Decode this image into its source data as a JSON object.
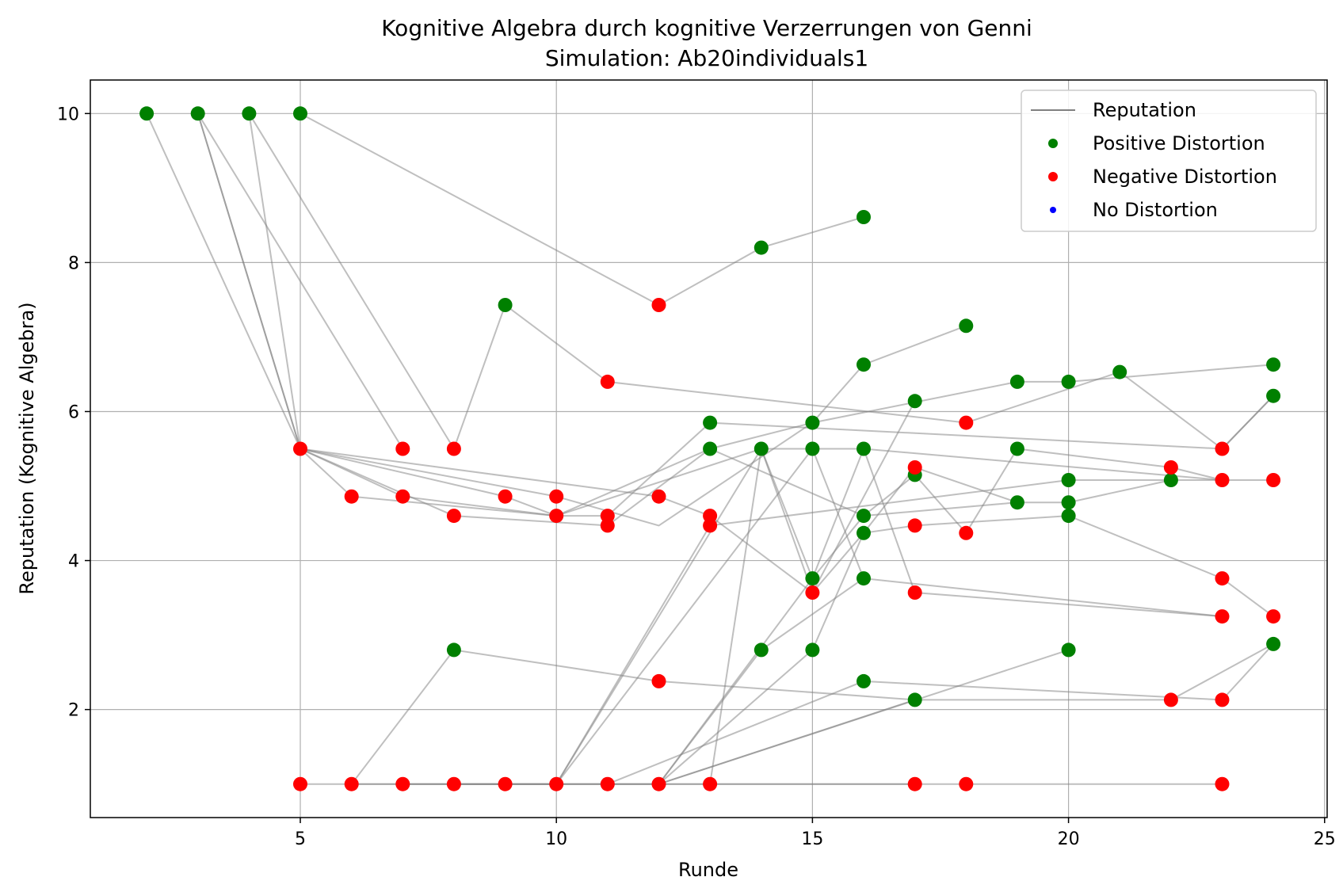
{
  "chart_data": {
    "type": "scatter",
    "title": "Kognitive Algebra durch kognitive Verzerrungen von Genni",
    "subtitle": "Simulation: Ab20individuals1",
    "xlabel": "Runde",
    "ylabel": "Reputation (Kognitive Algebra)",
    "xlim": [
      0.9,
      25.05
    ],
    "ylim": [
      0.55,
      10.45
    ],
    "xticks": [
      5,
      10,
      15,
      20,
      25
    ],
    "yticks": [
      2,
      4,
      6,
      8,
      10
    ],
    "grid": true,
    "legend_position": "top-right",
    "legend": [
      {
        "label": "Reputation",
        "kind": "line",
        "color": "#808080"
      },
      {
        "label": "Positive Distortion",
        "kind": "marker",
        "color": "#008000"
      },
      {
        "label": "Negative Distortion",
        "kind": "marker",
        "color": "#ff0000"
      },
      {
        "label": "No Distortion",
        "kind": "marker",
        "color": "#0000ff"
      }
    ],
    "series": [
      {
        "name": "Positive Distortion",
        "color": "#008000",
        "points": [
          [
            2,
            10
          ],
          [
            3,
            10
          ],
          [
            4,
            10
          ],
          [
            5,
            10
          ],
          [
            8,
            2.8
          ],
          [
            9,
            7.43
          ],
          [
            13,
            5.85
          ],
          [
            13,
            5.5
          ],
          [
            14,
            8.2
          ],
          [
            14,
            5.5
          ],
          [
            14,
            2.8
          ],
          [
            15,
            5.85
          ],
          [
            15,
            5.5
          ],
          [
            15,
            3.76
          ],
          [
            15,
            2.8
          ],
          [
            16,
            8.61
          ],
          [
            16,
            6.63
          ],
          [
            16,
            5.5
          ],
          [
            16,
            4.6
          ],
          [
            16,
            4.37
          ],
          [
            16,
            3.76
          ],
          [
            16,
            2.38
          ],
          [
            17,
            6.14
          ],
          [
            17,
            5.15
          ],
          [
            17,
            2.13
          ],
          [
            18,
            7.15
          ],
          [
            19,
            6.4
          ],
          [
            19,
            5.5
          ],
          [
            19,
            4.78
          ],
          [
            20,
            6.4
          ],
          [
            20,
            5.08
          ],
          [
            20,
            4.78
          ],
          [
            20,
            4.6
          ],
          [
            20,
            2.8
          ],
          [
            21,
            6.53
          ],
          [
            22,
            5.08
          ],
          [
            24,
            6.63
          ],
          [
            24,
            6.21
          ],
          [
            24,
            2.88
          ]
        ]
      },
      {
        "name": "Negative Distortion",
        "color": "#ff0000",
        "points": [
          [
            5,
            5.5
          ],
          [
            5,
            1
          ],
          [
            6,
            4.86
          ],
          [
            6,
            1
          ],
          [
            7,
            5.5
          ],
          [
            7,
            4.86
          ],
          [
            7,
            1
          ],
          [
            8,
            5.5
          ],
          [
            8,
            4.6
          ],
          [
            8,
            1
          ],
          [
            9,
            4.86
          ],
          [
            9,
            1
          ],
          [
            10,
            4.86
          ],
          [
            10,
            4.6
          ],
          [
            10,
            1
          ],
          [
            11,
            6.4
          ],
          [
            11,
            4.6
          ],
          [
            11,
            4.47
          ],
          [
            11,
            1
          ],
          [
            12,
            7.43
          ],
          [
            12,
            4.86
          ],
          [
            12,
            2.38
          ],
          [
            12,
            1
          ],
          [
            13,
            4.6
          ],
          [
            13,
            4.47
          ],
          [
            13,
            1
          ],
          [
            15,
            3.57
          ],
          [
            17,
            5.25
          ],
          [
            17,
            4.47
          ],
          [
            17,
            3.57
          ],
          [
            17,
            1
          ],
          [
            18,
            5.85
          ],
          [
            18,
            4.37
          ],
          [
            18,
            1
          ],
          [
            22,
            5.25
          ],
          [
            22,
            2.13
          ],
          [
            23,
            5.5
          ],
          [
            23,
            5.08
          ],
          [
            23,
            3.76
          ],
          [
            23,
            3.25
          ],
          [
            23,
            2.13
          ],
          [
            23,
            1
          ],
          [
            24,
            5.08
          ],
          [
            24,
            3.25
          ]
        ]
      },
      {
        "name": "No Distortion",
        "color": "#0000ff",
        "points": []
      }
    ],
    "reputation_lines": [
      [
        [
          2,
          10
        ],
        [
          5,
          5.5
        ],
        [
          6,
          4.86
        ],
        [
          10,
          4.6
        ],
        [
          11,
          4.6
        ],
        [
          13,
          5.85
        ],
        [
          23,
          5.5
        ],
        [
          24,
          6.21
        ]
      ],
      [
        [
          3,
          10
        ],
        [
          5,
          5.5
        ],
        [
          7,
          4.86
        ],
        [
          10,
          4.6
        ],
        [
          13,
          5.5
        ],
        [
          15,
          5.85
        ],
        [
          16,
          6.63
        ],
        [
          18,
          7.15
        ]
      ],
      [
        [
          3,
          10
        ],
        [
          5,
          5.5
        ],
        [
          8,
          4.6
        ],
        [
          11,
          4.47
        ],
        [
          13,
          5.5
        ],
        [
          16,
          4.6
        ],
        [
          17,
          5.15
        ],
        [
          18,
          4.37
        ],
        [
          19,
          5.5
        ],
        [
          22,
          5.25
        ],
        [
          23,
          5.08
        ],
        [
          24,
          5.08
        ]
      ],
      [
        [
          4,
          10
        ],
        [
          5,
          5.5
        ],
        [
          9,
          4.86
        ],
        [
          10,
          4.6
        ],
        [
          14,
          5.5
        ],
        [
          15,
          3.57
        ],
        [
          16,
          4.37
        ],
        [
          17,
          4.47
        ],
        [
          20,
          4.6
        ],
        [
          23,
          3.76
        ],
        [
          24,
          3.25
        ]
      ],
      [
        [
          4,
          10
        ],
        [
          8,
          5.5
        ],
        [
          9,
          7.43
        ],
        [
          11,
          6.4
        ],
        [
          18,
          5.85
        ],
        [
          21,
          6.53
        ],
        [
          23,
          5.5
        ],
        [
          24,
          6.21
        ]
      ],
      [
        [
          3,
          10
        ],
        [
          7,
          5.5
        ]
      ],
      [
        [
          5,
          10
        ],
        [
          12,
          7.43
        ],
        [
          14,
          8.2
        ],
        [
          16,
          8.61
        ]
      ],
      [
        [
          5,
          5.5
        ],
        [
          10,
          4.86
        ],
        [
          12,
          4.47
        ],
        [
          15,
          5.85
        ],
        [
          19,
          6.4
        ],
        [
          20,
          6.4
        ],
        [
          24,
          6.63
        ]
      ],
      [
        [
          5,
          5.5
        ],
        [
          12,
          4.86
        ],
        [
          13,
          4.6
        ],
        [
          15,
          3.57
        ],
        [
          17,
          6.14
        ]
      ],
      [
        [
          5,
          1
        ],
        [
          9,
          1
        ],
        [
          10,
          1
        ],
        [
          13,
          4.47
        ],
        [
          20,
          5.08
        ],
        [
          23,
          5.08
        ]
      ],
      [
        [
          6,
          1
        ],
        [
          8,
          2.8
        ],
        [
          12,
          2.38
        ],
        [
          17,
          2.13
        ],
        [
          22,
          2.13
        ],
        [
          24,
          2.88
        ]
      ],
      [
        [
          7,
          1
        ],
        [
          10,
          1
        ],
        [
          15,
          5.5
        ],
        [
          16,
          3.76
        ],
        [
          23,
          3.25
        ]
      ],
      [
        [
          10,
          1
        ],
        [
          12,
          1
        ],
        [
          15,
          3.76
        ],
        [
          16,
          5.5
        ],
        [
          23,
          5.08
        ]
      ],
      [
        [
          10,
          1
        ],
        [
          14,
          5.5
        ],
        [
          15,
          3.76
        ],
        [
          16,
          4.6
        ],
        [
          19,
          4.78
        ],
        [
          20,
          4.78
        ],
        [
          22,
          5.08
        ]
      ],
      [
        [
          11,
          1
        ],
        [
          16,
          2.38
        ],
        [
          23,
          2.13
        ],
        [
          24,
          2.88
        ]
      ],
      [
        [
          12,
          1
        ],
        [
          14,
          2.8
        ],
        [
          16,
          3.76
        ]
      ],
      [
        [
          12,
          1
        ],
        [
          15,
          2.8
        ],
        [
          16,
          4.37
        ],
        [
          17,
          5.25
        ],
        [
          19,
          4.78
        ]
      ],
      [
        [
          12,
          1
        ],
        [
          20,
          2.8
        ]
      ],
      [
        [
          12,
          1
        ],
        [
          17,
          2.13
        ]
      ],
      [
        [
          13,
          1
        ],
        [
          14,
          5.5
        ],
        [
          15,
          5.5
        ],
        [
          16,
          5.5
        ],
        [
          17,
          3.57
        ],
        [
          23,
          3.25
        ]
      ],
      [
        [
          6,
          1
        ],
        [
          13,
          1
        ],
        [
          18,
          1
        ],
        [
          23,
          1
        ]
      ],
      [
        [
          8,
          1
        ],
        [
          17,
          1
        ]
      ]
    ]
  }
}
